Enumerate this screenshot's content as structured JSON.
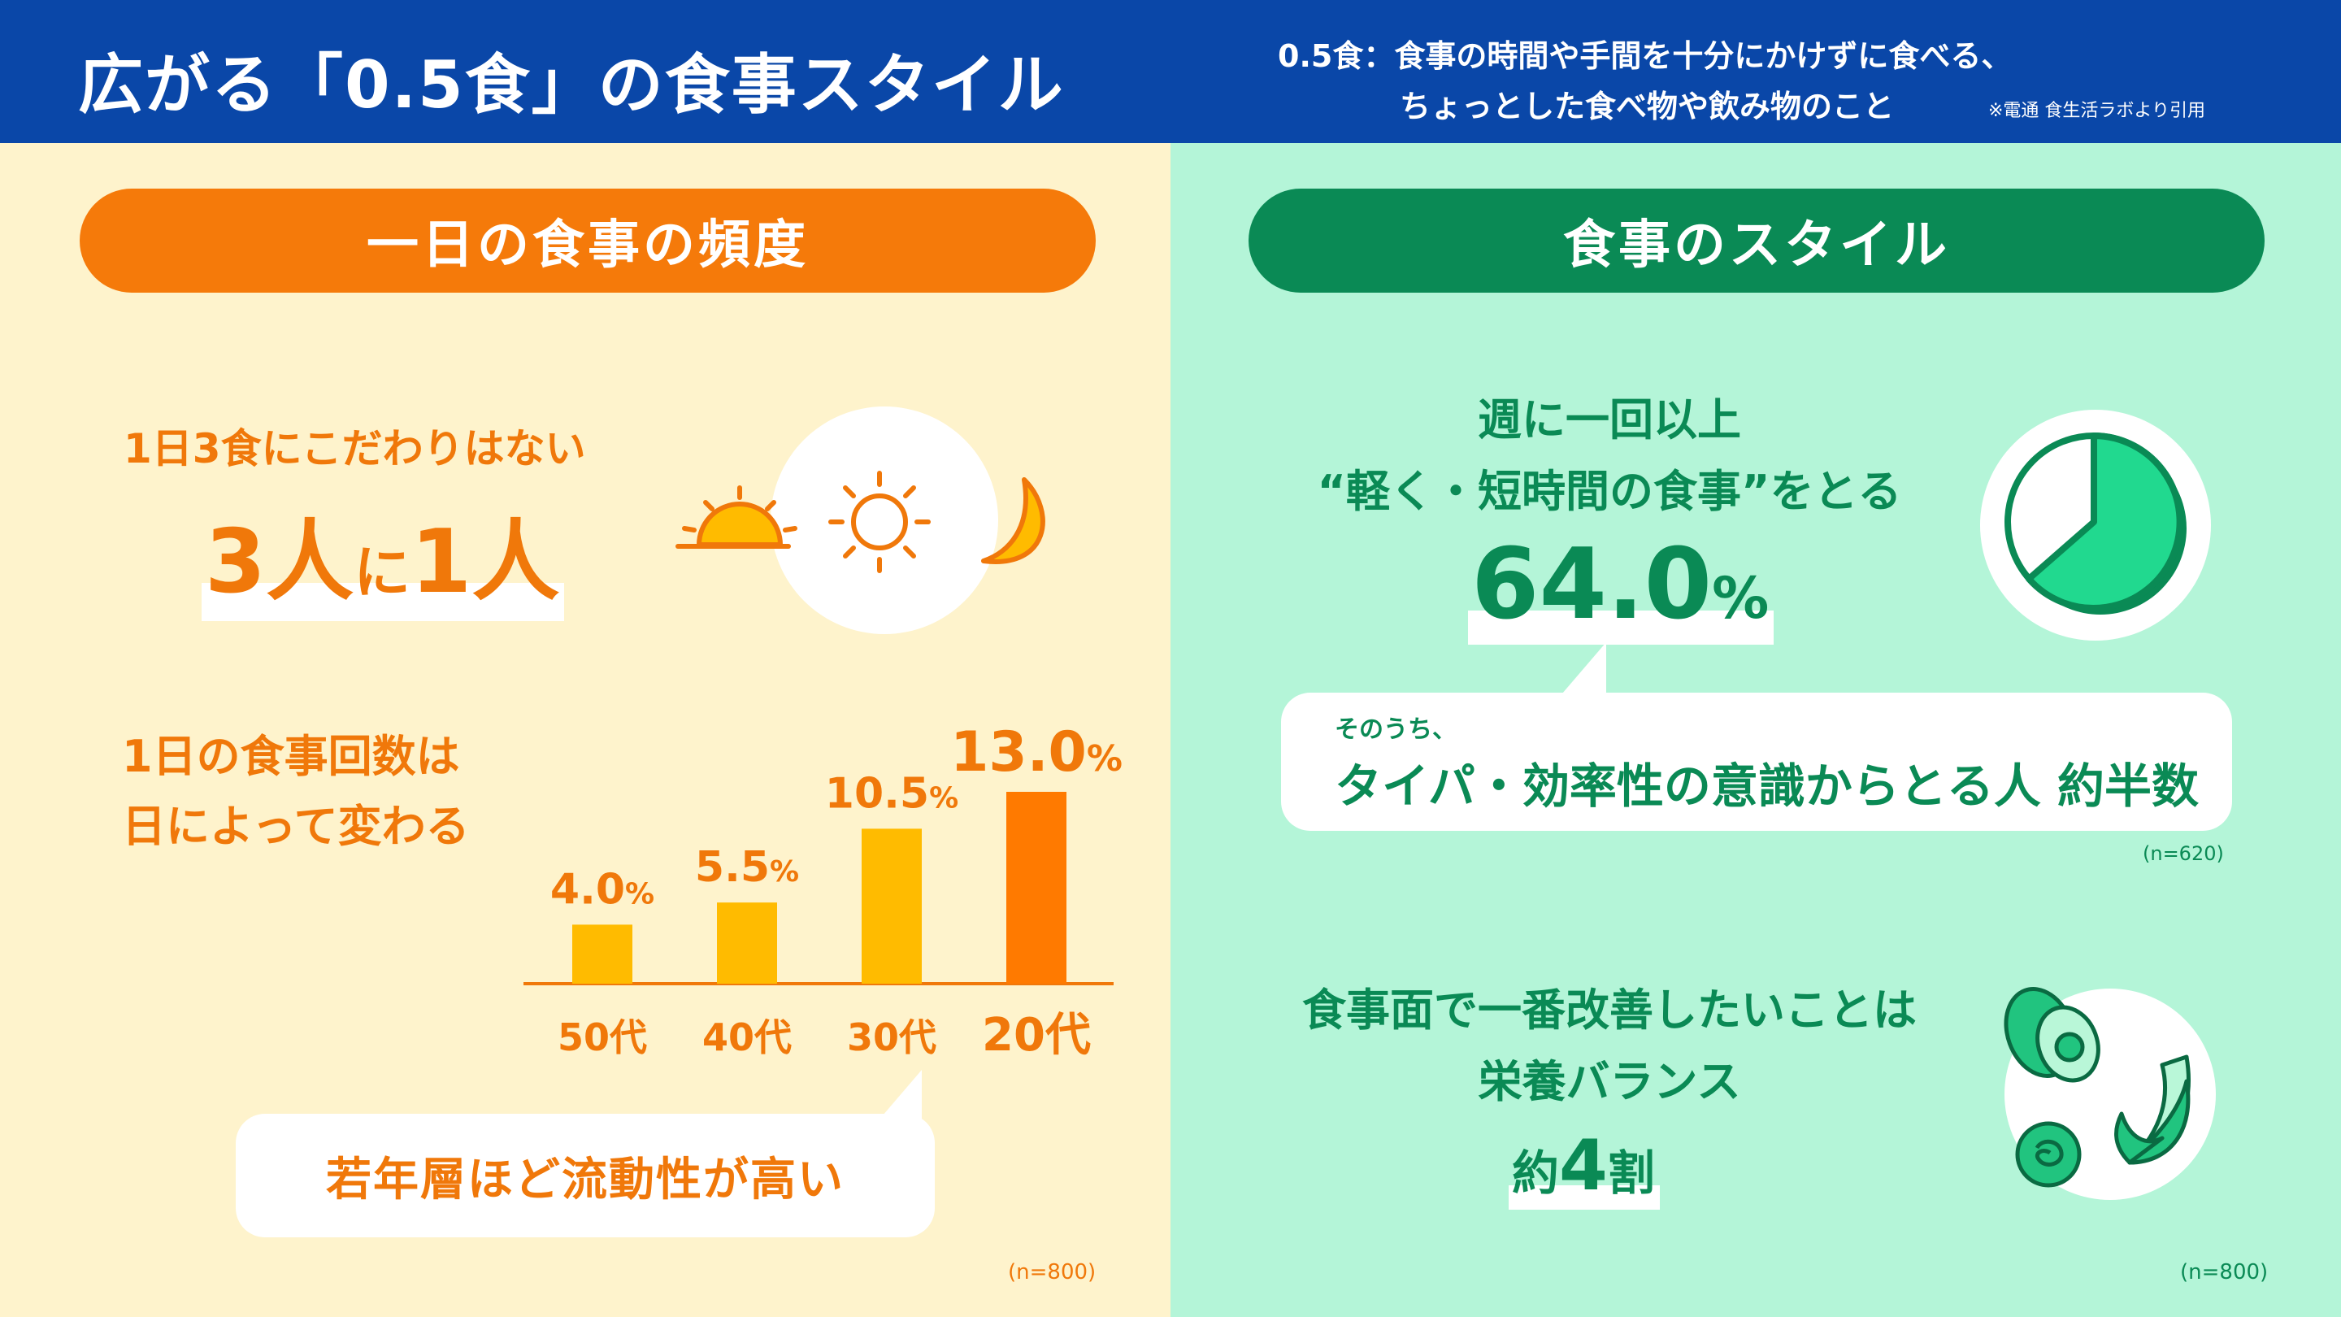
{
  "header": {
    "title": "広がる「0.5食」の食事スタイル",
    "definition_line1": "0.5食：食事の時間や手間を十分にかけずに食べる、",
    "definition_line2": "ちょっとした食べ物や飲み物のこと",
    "source_note": "※電通 食生活ラボより引用"
  },
  "left": {
    "section_title": "一日の食事の頻度",
    "no_attachment": "1日3食にこだわりはない",
    "ratio_num1": "3",
    "ratio_word1": "人",
    "ratio_mid": "に",
    "ratio_num2": "1",
    "ratio_word2": "人",
    "count_title_line1": "1日の食事回数は",
    "count_title_line2": "日によって変わる",
    "callout": "若年層ほど流動性が高い",
    "sample_size": "(n=800)"
  },
  "chart_data": {
    "type": "bar",
    "title": "1日の食事回数は日によって変わる",
    "categories": [
      "50代",
      "40代",
      "30代",
      "20代"
    ],
    "values": [
      4.0,
      5.5,
      10.5,
      13.0
    ],
    "value_labels": [
      "4.0",
      "5.5",
      "10.5",
      "13.0"
    ],
    "unit": "%",
    "xlabel": "",
    "ylabel": "",
    "ylim": [
      0,
      13.0
    ],
    "grid": false,
    "colors": [
      "#ffbb00",
      "#ffbb00",
      "#ffbb00",
      "#ff7a00"
    ]
  },
  "right": {
    "section_title": "食事のスタイル",
    "weekly_line1": "週に一回以上",
    "weekly_line2": "“軽く・短時間の食事”をとる",
    "weekly_value": "64.0",
    "weekly_unit": "%",
    "bubble_small": "そのうち、",
    "bubble_main": "タイパ・効率性の意識からとる人 約半数",
    "sample_size_1": "(n=620)",
    "improve_line1": "食事面で一番改善したいことは",
    "improve_line2": "栄養バランス",
    "improve_pre": "約",
    "improve_num": "4",
    "improve_post": "割",
    "sample_size_2": "(n=800)"
  },
  "colors": {
    "header_bg": "#0a47a8",
    "orange": "#f0780a",
    "green": "#0a8a55",
    "left_bg": "#fef3cc",
    "right_bg": "#b4f5d8"
  }
}
